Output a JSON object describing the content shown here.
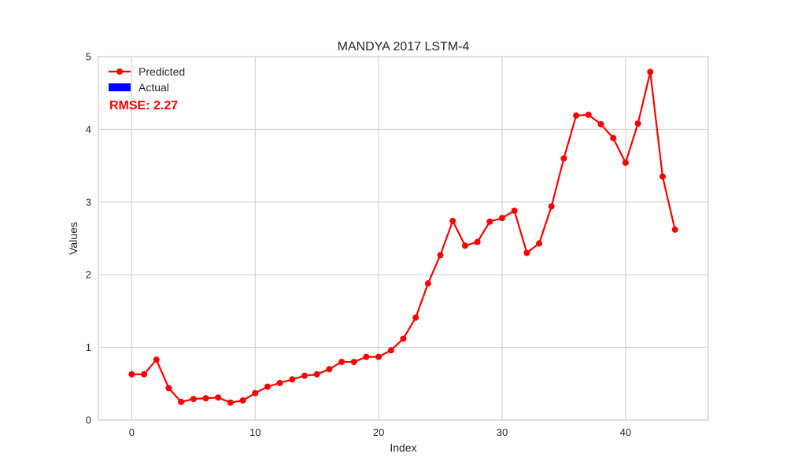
{
  "chart_data": {
    "type": "line",
    "title": "MANDYA 2017 LSTM-4",
    "xlabel": "Index",
    "ylabel": "Values",
    "xlim": [
      -2.7,
      46.7
    ],
    "ylim": [
      0,
      5
    ],
    "xticks": [
      0,
      10,
      20,
      30,
      40
    ],
    "yticks": [
      0,
      1,
      2,
      3,
      4,
      5
    ],
    "grid": true,
    "legend_position": "top-left",
    "series": [
      {
        "name": "Predicted",
        "color": "#ff0000",
        "marker": "circle",
        "x": [
          0,
          1,
          2,
          3,
          4,
          5,
          6,
          7,
          8,
          9,
          10,
          11,
          12,
          13,
          14,
          15,
          16,
          17,
          18,
          19,
          20,
          21,
          22,
          23,
          24,
          25,
          26,
          27,
          28,
          29,
          30,
          31,
          32,
          33,
          34,
          35,
          36,
          37,
          38,
          39,
          40,
          41,
          42,
          43,
          44
        ],
        "values": [
          0.63,
          0.63,
          0.83,
          0.44,
          0.25,
          0.29,
          0.3,
          0.31,
          0.24,
          0.27,
          0.37,
          0.46,
          0.51,
          0.56,
          0.61,
          0.63,
          0.7,
          0.8,
          0.8,
          0.87,
          0.87,
          0.96,
          1.12,
          1.41,
          1.88,
          2.27,
          2.74,
          2.4,
          2.45,
          2.73,
          2.78,
          2.88,
          2.3,
          2.43,
          2.94,
          3.6,
          4.19,
          4.2,
          4.07,
          3.88,
          3.54,
          4.08,
          4.79,
          3.35,
          2.62
        ]
      },
      {
        "name": "Actual",
        "color": "#0000ff",
        "legend_style": "patch",
        "x": [],
        "values": []
      }
    ],
    "annotation": {
      "text": "RMSE: 2.27",
      "color": "#ff0000"
    }
  }
}
